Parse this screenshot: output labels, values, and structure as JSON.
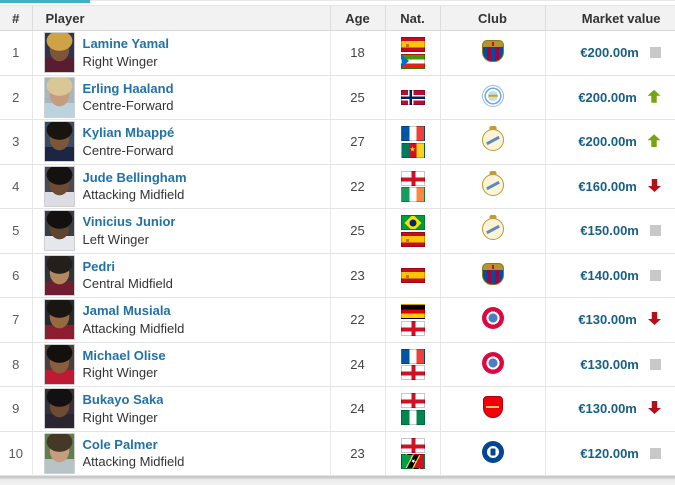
{
  "colors": {
    "tab_accent_teal": "#3eb1c5",
    "player_link_blue": "#2271a7",
    "market_value_blue": "#185f86",
    "trend_up_green": "#74a410",
    "trend_down_red": "#b0111b",
    "trend_same_gray": "#c8c8c8",
    "header_bg": "#f2f2f2"
  },
  "table": {
    "columns": [
      {
        "key": "rank",
        "label": "#"
      },
      {
        "key": "player",
        "label": "Player"
      },
      {
        "key": "age",
        "label": "Age"
      },
      {
        "key": "nat",
        "label": "Nat."
      },
      {
        "key": "club",
        "label": "Club"
      },
      {
        "key": "value",
        "label": "Market value"
      }
    ],
    "rows": [
      {
        "rank": "1",
        "name": "Lamine Yamal",
        "position": "Right Winger",
        "age": "18",
        "nationalities": [
          "spain",
          "equatorial-guinea"
        ],
        "club": "barcelona",
        "value": "€200.00m",
        "trend": "same",
        "photo": {
          "bg": "#2e3450",
          "hair": "#cda345",
          "skin": "#7d5638",
          "shirt": "#5a1c30"
        }
      },
      {
        "rank": "2",
        "name": "Erling Haaland",
        "position": "Centre-Forward",
        "age": "25",
        "nationalities": [
          "norway"
        ],
        "club": "man-city",
        "value": "€200.00m",
        "trend": "up",
        "photo": {
          "bg": "#a8b6bd",
          "hair": "#d9c795",
          "skin": "#c79c7e",
          "shirt": "#bcd2de"
        }
      },
      {
        "rank": "3",
        "name": "Kylian Mbappé",
        "position": "Centre-Forward",
        "age": "27",
        "nationalities": [
          "france",
          "cameroon"
        ],
        "club": "real-madrid",
        "value": "€200.00m",
        "trend": "up",
        "photo": {
          "bg": "#3c4a66",
          "hair": "#18140f",
          "skin": "#7b5738",
          "shirt": "#1c2544"
        }
      },
      {
        "rank": "4",
        "name": "Jude Bellingham",
        "position": "Attacking Midfield",
        "age": "22",
        "nationalities": [
          "england",
          "ireland"
        ],
        "club": "real-madrid",
        "value": "€160.00m",
        "trend": "down",
        "photo": {
          "bg": "#4b4a52",
          "hair": "#141110",
          "skin": "#6e4c33",
          "shirt": "#dcdce4"
        }
      },
      {
        "rank": "5",
        "name": "Vinicius Junior",
        "position": "Left Winger",
        "age": "25",
        "nationalities": [
          "brazil",
          "spain"
        ],
        "club": "real-madrid",
        "value": "€150.00m",
        "trend": "same",
        "photo": {
          "bg": "#383d48",
          "hair": "#131110",
          "skin": "#5f4430",
          "shirt": "#e6e6ee"
        }
      },
      {
        "rank": "6",
        "name": "Pedri",
        "position": "Central Midfield",
        "age": "23",
        "nationalities": [
          "spain"
        ],
        "club": "barcelona",
        "value": "€140.00m",
        "trend": "same",
        "photo": {
          "bg": "#30333a",
          "hair": "#23201c",
          "skin": "#b3885f",
          "shirt": "#701d32"
        }
      },
      {
        "rank": "7",
        "name": "Jamal Musiala",
        "position": "Attacking Midfield",
        "age": "22",
        "nationalities": [
          "germany",
          "england"
        ],
        "club": "bayern",
        "value": "€130.00m",
        "trend": "down",
        "photo": {
          "bg": "#272b31",
          "hair": "#191511",
          "skin": "#96693f",
          "shirt": "#8c1f2f"
        }
      },
      {
        "rank": "8",
        "name": "Michael Olise",
        "position": "Right Winger",
        "age": "24",
        "nationalities": [
          "france",
          "england"
        ],
        "club": "bayern",
        "value": "€130.00m",
        "trend": "same",
        "photo": {
          "bg": "#4a3f3e",
          "hair": "#14100d",
          "skin": "#8a5d3c",
          "shirt": "#bf1a33"
        }
      },
      {
        "rank": "9",
        "name": "Bukayo Saka",
        "position": "Right Winger",
        "age": "24",
        "nationalities": [
          "england",
          "nigeria"
        ],
        "club": "arsenal",
        "value": "€130.00m",
        "trend": "down",
        "photo": {
          "bg": "#353039",
          "hair": "#121010",
          "skin": "#6e4c33",
          "shirt": "#2a2531"
        }
      },
      {
        "rank": "10",
        "name": "Cole Palmer",
        "position": "Attacking Midfield",
        "age": "23",
        "nationalities": [
          "england",
          "st-kitts-nevis"
        ],
        "club": "chelsea",
        "value": "€120.00m",
        "trend": "same",
        "photo": {
          "bg": "#5f7f4c",
          "hair": "#453827",
          "skin": "#c69d7e",
          "shirt": "#b7c3c7"
        }
      }
    ]
  }
}
